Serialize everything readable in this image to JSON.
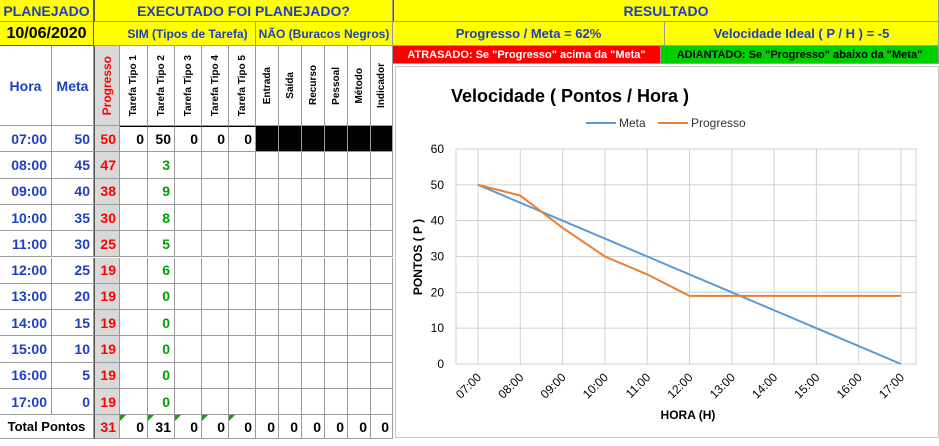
{
  "header": {
    "planejado": "PLANEJADO",
    "date": "10/06/2020",
    "executado": "EXECUTADO FOI PLANEJADO?",
    "sim": "SIM (Tipos de Tarefa)",
    "nao": "NÃO (Buracos Negros)",
    "resultado": "RESULTADO",
    "progresso_meta": "Progresso / Meta = 62%",
    "velocidade_ideal": "Velocidade Ideal  ( P / H ) = -5",
    "atrasado": "ATRASADO: Se \"Progresso\" acima da \"Meta\"",
    "adiantado": "ADIANTADO: Se \"Progresso\" abaixo da \"Meta\""
  },
  "columns": {
    "hora": "Hora",
    "meta": "Meta",
    "progresso": "Progresso",
    "tarefas": [
      "Tarefa Tipo 1",
      "Tarefa Tipo 2",
      "Tarefa Tipo 3",
      "Tarefa Tipo 4",
      "Tarefa Tipo 5"
    ],
    "buracos": [
      "Entrada",
      "Saída",
      "Recurso",
      "Pessoal",
      "Método",
      "Indicador"
    ]
  },
  "colors": {
    "yellow": "#ffff00",
    "red_banner": "#ff0000",
    "green_banner": "#00d000",
    "meta_line": "#5b9bd5",
    "progress_line": "#ed7d31"
  },
  "rows": [
    {
      "hora": "07:00",
      "meta": "50",
      "progresso": "50",
      "t1": "0",
      "t2": "50",
      "t3": "0",
      "t4": "0",
      "t5": "0"
    },
    {
      "hora": "08:00",
      "meta": "45",
      "progresso": "47",
      "t1": "",
      "t2": "3",
      "t3": "",
      "t4": "",
      "t5": ""
    },
    {
      "hora": "09:00",
      "meta": "40",
      "progresso": "38",
      "t1": "",
      "t2": "9",
      "t3": "",
      "t4": "",
      "t5": ""
    },
    {
      "hora": "10:00",
      "meta": "35",
      "progresso": "30",
      "t1": "",
      "t2": "8",
      "t3": "",
      "t4": "",
      "t5": ""
    },
    {
      "hora": "11:00",
      "meta": "30",
      "progresso": "25",
      "t1": "",
      "t2": "5",
      "t3": "",
      "t4": "",
      "t5": ""
    },
    {
      "hora": "12:00",
      "meta": "25",
      "progresso": "19",
      "t1": "",
      "t2": "6",
      "t3": "",
      "t4": "",
      "t5": ""
    },
    {
      "hora": "13:00",
      "meta": "20",
      "progresso": "19",
      "t1": "",
      "t2": "0",
      "t3": "",
      "t4": "",
      "t5": ""
    },
    {
      "hora": "14:00",
      "meta": "15",
      "progresso": "19",
      "t1": "",
      "t2": "0",
      "t3": "",
      "t4": "",
      "t5": ""
    },
    {
      "hora": "15:00",
      "meta": "10",
      "progresso": "19",
      "t1": "",
      "t2": "0",
      "t3": "",
      "t4": "",
      "t5": ""
    },
    {
      "hora": "16:00",
      "meta": "5",
      "progresso": "19",
      "t1": "",
      "t2": "0",
      "t3": "",
      "t4": "",
      "t5": ""
    },
    {
      "hora": "17:00",
      "meta": "0",
      "progresso": "19",
      "t1": "",
      "t2": "0",
      "t3": "",
      "t4": "",
      "t5": ""
    }
  ],
  "total": {
    "label": "Total Pontos",
    "progresso": "31",
    "tarefas": [
      "0",
      "31",
      "0",
      "0",
      "0"
    ],
    "buracos": [
      "0",
      "0",
      "0",
      "0",
      "0",
      "0"
    ]
  },
  "chart_data": {
    "type": "line",
    "title": "Velocidade ( Pontos / Hora )",
    "xlabel": "HORA (H)",
    "ylabel": "PONTOS ( P )",
    "ylim": [
      0,
      60
    ],
    "yticks": [
      "0",
      "10",
      "20",
      "30",
      "40",
      "50",
      "60"
    ],
    "categories": [
      "07:00",
      "08:00",
      "09:00",
      "10:00",
      "11:00",
      "12:00",
      "13:00",
      "14:00",
      "15:00",
      "16:00",
      "17:00"
    ],
    "legend_position": "top",
    "grid": true,
    "series": [
      {
        "name": "Meta",
        "values": [
          50,
          45,
          40,
          35,
          30,
          25,
          20,
          15,
          10,
          5,
          0
        ]
      },
      {
        "name": "Progresso",
        "values": [
          50,
          47,
          38,
          30,
          25,
          19,
          19,
          19,
          19,
          19,
          19
        ]
      }
    ]
  }
}
